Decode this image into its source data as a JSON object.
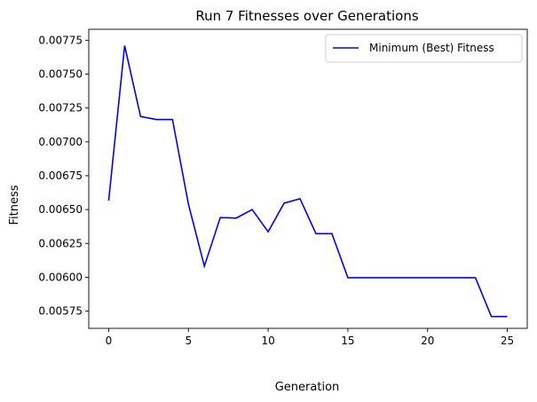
{
  "chart_data": {
    "type": "line",
    "title": "Run 7 Fitnesses over Generations",
    "xlabel": "Generation",
    "ylabel": "Fitness",
    "xlim": [
      -1.25,
      26.25
    ],
    "ylim": [
      0.005623,
      0.007831
    ],
    "xticks": [
      0,
      5,
      10,
      15,
      20,
      25
    ],
    "xtick_labels": [
      "0",
      "5",
      "10",
      "15",
      "20",
      "25"
    ],
    "yticks": [
      0.00575,
      0.006,
      0.00625,
      0.0065,
      0.00675,
      0.007,
      0.00725,
      0.0075,
      0.00775
    ],
    "ytick_labels": [
      "0.00575",
      "0.00600",
      "0.00625",
      "0.00650",
      "0.00675",
      "0.00700",
      "0.00725",
      "0.00750",
      "0.00775"
    ],
    "grid": false,
    "legend_position": "top-right",
    "series": [
      {
        "name": "Minimum (Best) Fitness",
        "color": "#0000ff",
        "x": [
          0,
          1,
          2,
          3,
          4,
          5,
          6,
          7,
          8,
          9,
          10,
          11,
          12,
          13,
          14,
          15,
          16,
          17,
          18,
          19,
          20,
          21,
          22,
          23,
          24,
          25
        ],
        "y": [
          0.006566,
          0.00771,
          0.007187,
          0.007165,
          0.007165,
          0.006541,
          0.006082,
          0.006441,
          0.006437,
          0.0065,
          0.006336,
          0.006547,
          0.00658,
          0.006322,
          0.006322,
          0.005997,
          0.005997,
          0.005997,
          0.005997,
          0.005997,
          0.005997,
          0.005997,
          0.005997,
          0.005997,
          0.00571,
          0.00571
        ]
      }
    ]
  }
}
